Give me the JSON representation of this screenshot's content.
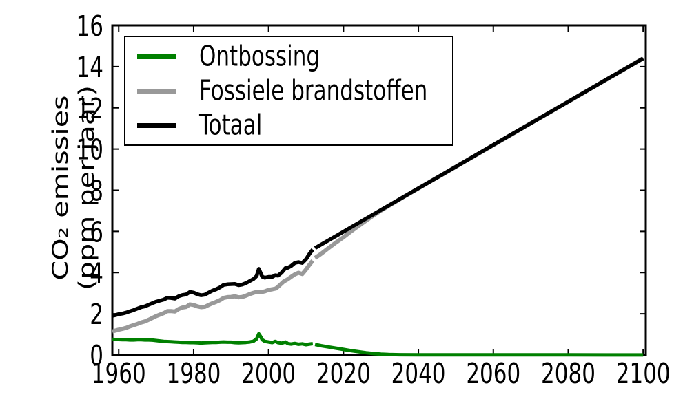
{
  "figure": {
    "background": "#ffffff",
    "axis_color": "#000000"
  },
  "chart_data": {
    "type": "line",
    "title": "",
    "xlabel": "",
    "ylabel": "CO₂ emissies (ppm per jaar)",
    "ylabel_lines": [
      "CO₂ emissies",
      "(ppm per jaar)"
    ],
    "xlim": [
      1958.3,
      2100.7
    ],
    "ylim": [
      0,
      16
    ],
    "x_tick_values": [
      1960,
      1980,
      2000,
      2020,
      2040,
      2060,
      2080,
      2100
    ],
    "x_tick_labels": [
      "1960",
      "1980",
      "2000",
      "2020",
      "2040",
      "2060",
      "2080",
      "2100"
    ],
    "y_tick_values": [
      0,
      2,
      4,
      6,
      8,
      10,
      12,
      14,
      16
    ],
    "y_tick_labels": [
      "0",
      "2",
      "4",
      "6",
      "8",
      "10",
      "12",
      "14",
      "16"
    ],
    "grid": false,
    "legend": {
      "position": "upper-left"
    },
    "series": [
      {
        "name": "Ontbossing",
        "color": "#008000",
        "linewidth": 5,
        "segments": [
          [
            [
              1958.3,
              0.76
            ],
            [
              1959,
              0.75
            ],
            [
              1960,
              0.75
            ],
            [
              1961,
              0.74
            ],
            [
              1962,
              0.74
            ],
            [
              1963,
              0.73
            ],
            [
              1964,
              0.73
            ],
            [
              1965,
              0.74
            ],
            [
              1966,
              0.74
            ],
            [
              1967,
              0.73
            ],
            [
              1968,
              0.73
            ],
            [
              1969,
              0.72
            ],
            [
              1970,
              0.7
            ],
            [
              1971,
              0.68
            ],
            [
              1972,
              0.66
            ],
            [
              1973,
              0.65
            ],
            [
              1974,
              0.64
            ],
            [
              1975,
              0.63
            ],
            [
              1976,
              0.62
            ],
            [
              1977,
              0.61
            ],
            [
              1978,
              0.61
            ],
            [
              1979,
              0.6
            ],
            [
              1980,
              0.6
            ],
            [
              1981,
              0.59
            ],
            [
              1982,
              0.58
            ],
            [
              1983,
              0.59
            ],
            [
              1984,
              0.6
            ],
            [
              1985,
              0.61
            ],
            [
              1986,
              0.61
            ],
            [
              1987,
              0.62
            ],
            [
              1988,
              0.63
            ],
            [
              1989,
              0.62
            ],
            [
              1990,
              0.62
            ],
            [
              1991,
              0.6
            ],
            [
              1992,
              0.59
            ],
            [
              1993,
              0.6
            ],
            [
              1994,
              0.61
            ],
            [
              1995,
              0.63
            ],
            [
              1996,
              0.67
            ],
            [
              1996.8,
              0.78
            ],
            [
              1997.4,
              1.03
            ],
            [
              1997.8,
              0.92
            ],
            [
              1998.3,
              0.74
            ],
            [
              1999,
              0.66
            ],
            [
              2000,
              0.63
            ],
            [
              2001,
              0.6
            ],
            [
              2001.8,
              0.66
            ],
            [
              2002.5,
              0.6
            ],
            [
              2003.5,
              0.57
            ],
            [
              2004.5,
              0.63
            ],
            [
              2005.2,
              0.55
            ],
            [
              2006,
              0.53
            ],
            [
              2007,
              0.56
            ],
            [
              2008,
              0.52
            ],
            [
              2009,
              0.54
            ],
            [
              2010,
              0.5
            ],
            [
              2011,
              0.53
            ],
            [
              2011.8,
              0.55
            ]
          ],
          [
            [
              2012.4,
              0.51
            ],
            [
              2014,
              0.45
            ],
            [
              2016,
              0.39
            ],
            [
              2018,
              0.33
            ],
            [
              2020,
              0.27
            ],
            [
              2022,
              0.21
            ],
            [
              2024,
              0.16
            ],
            [
              2026,
              0.11
            ],
            [
              2028,
              0.07
            ],
            [
              2030,
              0.04
            ],
            [
              2032,
              0.025
            ],
            [
              2035,
              0.015
            ],
            [
              2040,
              0.01
            ],
            [
              2050,
              0.008
            ],
            [
              2060,
              0.007
            ],
            [
              2070,
              0.006
            ],
            [
              2080,
              0.006
            ],
            [
              2090,
              0.005
            ],
            [
              2100,
              0.005
            ]
          ]
        ]
      },
      {
        "name": "Fossiele brandstoffen",
        "color": "#999999",
        "linewidth": 6,
        "segments": [
          [
            [
              1958.3,
              1.14
            ],
            [
              1959,
              1.18
            ],
            [
              1960,
              1.23
            ],
            [
              1961,
              1.27
            ],
            [
              1962,
              1.32
            ],
            [
              1963,
              1.39
            ],
            [
              1964,
              1.45
            ],
            [
              1965,
              1.51
            ],
            [
              1966,
              1.58
            ],
            [
              1967,
              1.63
            ],
            [
              1968,
              1.71
            ],
            [
              1969,
              1.8
            ],
            [
              1970,
              1.89
            ],
            [
              1971,
              1.96
            ],
            [
              1972,
              2.03
            ],
            [
              1973,
              2.13
            ],
            [
              1974,
              2.13
            ],
            [
              1975,
              2.11
            ],
            [
              1976,
              2.23
            ],
            [
              1977,
              2.3
            ],
            [
              1978,
              2.33
            ],
            [
              1979,
              2.46
            ],
            [
              1980,
              2.43
            ],
            [
              1981,
              2.36
            ],
            [
              1982,
              2.32
            ],
            [
              1983,
              2.34
            ],
            [
              1984,
              2.43
            ],
            [
              1985,
              2.51
            ],
            [
              1986,
              2.58
            ],
            [
              1987,
              2.66
            ],
            [
              1988,
              2.77
            ],
            [
              1989,
              2.81
            ],
            [
              1990,
              2.82
            ],
            [
              1991,
              2.85
            ],
            [
              1992,
              2.8
            ],
            [
              1993,
              2.82
            ],
            [
              1994,
              2.88
            ],
            [
              1995,
              2.96
            ],
            [
              1996,
              3.02
            ],
            [
              1997,
              3.07
            ],
            [
              1998,
              3.05
            ],
            [
              1999,
              3.09
            ],
            [
              2000,
              3.16
            ],
            [
              2001,
              3.19
            ],
            [
              2002,
              3.23
            ],
            [
              2003,
              3.39
            ],
            [
              2004,
              3.56
            ],
            [
              2005,
              3.66
            ],
            [
              2006,
              3.79
            ],
            [
              2007,
              3.91
            ],
            [
              2008,
              3.99
            ],
            [
              2009,
              3.93
            ],
            [
              2010,
              4.15
            ],
            [
              2011,
              4.4
            ],
            [
              2011.8,
              4.58
            ]
          ],
          [
            [
              2012.4,
              4.71
            ],
            [
              2014,
              4.91
            ],
            [
              2016,
              5.19
            ],
            [
              2018,
              5.46
            ],
            [
              2020,
              5.72
            ],
            [
              2022,
              6.0
            ],
            [
              2024,
              6.26
            ],
            [
              2026,
              6.52
            ],
            [
              2028,
              6.77
            ],
            [
              2030,
              7.01
            ],
            [
              2033,
              7.34
            ],
            [
              2036,
              7.67
            ],
            [
              2040,
              8.09
            ],
            [
              2050,
              9.14
            ],
            [
              2060,
              10.19
            ],
            [
              2070,
              11.25
            ],
            [
              2080,
              12.3
            ],
            [
              2090,
              13.35
            ],
            [
              2100,
              14.4
            ]
          ]
        ]
      },
      {
        "name": "Totaal",
        "color": "#000000",
        "linewidth": 5.5,
        "segments": [
          [
            [
              1958.3,
              1.9
            ],
            [
              1959,
              1.93
            ],
            [
              1960,
              1.98
            ],
            [
              1961,
              2.01
            ],
            [
              1962,
              2.06
            ],
            [
              1963,
              2.12
            ],
            [
              1964,
              2.18
            ],
            [
              1965,
              2.25
            ],
            [
              1966,
              2.32
            ],
            [
              1967,
              2.36
            ],
            [
              1968,
              2.44
            ],
            [
              1969,
              2.52
            ],
            [
              1970,
              2.59
            ],
            [
              1971,
              2.64
            ],
            [
              1972,
              2.69
            ],
            [
              1973,
              2.78
            ],
            [
              1974,
              2.77
            ],
            [
              1975,
              2.74
            ],
            [
              1976,
              2.85
            ],
            [
              1977,
              2.91
            ],
            [
              1978,
              2.94
            ],
            [
              1979,
              3.06
            ],
            [
              1980,
              3.03
            ],
            [
              1981,
              2.95
            ],
            [
              1982,
              2.9
            ],
            [
              1983,
              2.93
            ],
            [
              1984,
              3.03
            ],
            [
              1985,
              3.12
            ],
            [
              1986,
              3.19
            ],
            [
              1987,
              3.28
            ],
            [
              1988,
              3.4
            ],
            [
              1989,
              3.43
            ],
            [
              1990,
              3.44
            ],
            [
              1991,
              3.45
            ],
            [
              1992,
              3.39
            ],
            [
              1993,
              3.42
            ],
            [
              1994,
              3.49
            ],
            [
              1995,
              3.59
            ],
            [
              1996,
              3.69
            ],
            [
              1996.8,
              3.83
            ],
            [
              1997.4,
              4.18
            ],
            [
              1997.8,
              4.02
            ],
            [
              1998.3,
              3.8
            ],
            [
              1999,
              3.75
            ],
            [
              2000,
              3.79
            ],
            [
              2001,
              3.79
            ],
            [
              2001.8,
              3.87
            ],
            [
              2002.5,
              3.85
            ],
            [
              2003.5,
              4.0
            ],
            [
              2004.5,
              4.22
            ],
            [
              2005.2,
              4.24
            ],
            [
              2006,
              4.32
            ],
            [
              2007,
              4.47
            ],
            [
              2008,
              4.51
            ],
            [
              2009,
              4.47
            ],
            [
              2010,
              4.65
            ],
            [
              2011,
              4.93
            ],
            [
              2011.8,
              5.12
            ]
          ],
          [
            [
              2012.4,
              5.19
            ],
            [
              2020,
              5.99
            ],
            [
              2030,
              7.04
            ],
            [
              2040,
              8.09
            ],
            [
              2050,
              9.14
            ],
            [
              2060,
              10.2
            ],
            [
              2070,
              11.25
            ],
            [
              2080,
              12.3
            ],
            [
              2090,
              13.35
            ],
            [
              2100,
              14.4
            ]
          ]
        ]
      }
    ]
  }
}
